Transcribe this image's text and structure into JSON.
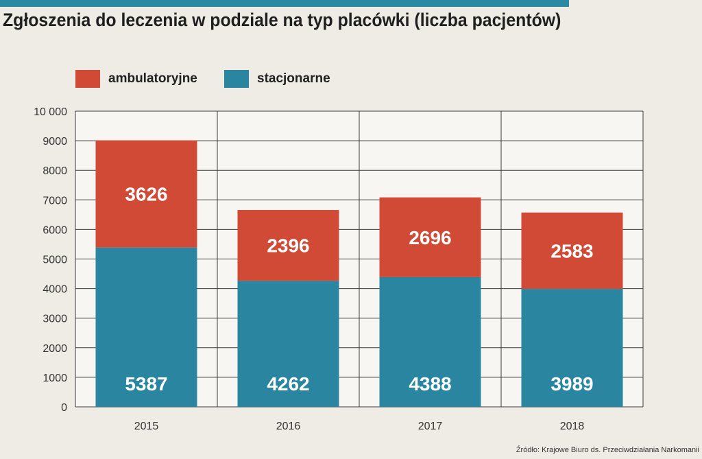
{
  "header": {
    "title": "Zgłoszenia do leczenia w podziale na typ placówki (liczba pacjentów)"
  },
  "colors": {
    "accent_bar": "#2a8aa3",
    "ambulatoryjne": "#d04a36",
    "stacjonarne": "#2a86a0",
    "background": "#efece6",
    "plot_background": "#f7f6f2"
  },
  "legend": {
    "placement": "top-left",
    "items": [
      {
        "label": "ambulatoryjne",
        "color": "#d04a36"
      },
      {
        "label": "stacjonarne",
        "color": "#2a86a0"
      }
    ]
  },
  "source": "Źródło: Krajowe Biuro ds. Przeciwdziałania Narkomanii",
  "chart_data": {
    "type": "bar",
    "stacked": true,
    "title": "Zgłoszenia do leczenia w podziale na typ placówki (liczba pacjentów)",
    "categories": [
      "2015",
      "2016",
      "2017",
      "2018"
    ],
    "series": [
      {
        "name": "stacjonarne",
        "values": [
          5387,
          4262,
          4388,
          3989
        ],
        "color": "#2a86a0"
      },
      {
        "name": "ambulatoryjne",
        "values": [
          3626,
          2396,
          2696,
          2583
        ],
        "color": "#d04a36"
      }
    ],
    "ylim": [
      0,
      10000
    ],
    "yticks": [
      0,
      1000,
      2000,
      3000,
      4000,
      5000,
      6000,
      7000,
      8000,
      9000,
      10000
    ],
    "ytick_labels": [
      "0",
      "1000",
      "2000",
      "3000",
      "4000",
      "5000",
      "6000",
      "7000",
      "8000",
      "9000",
      "10 000"
    ],
    "xlabel": "",
    "ylabel": "",
    "grid": true,
    "legend_position": "top-left"
  }
}
